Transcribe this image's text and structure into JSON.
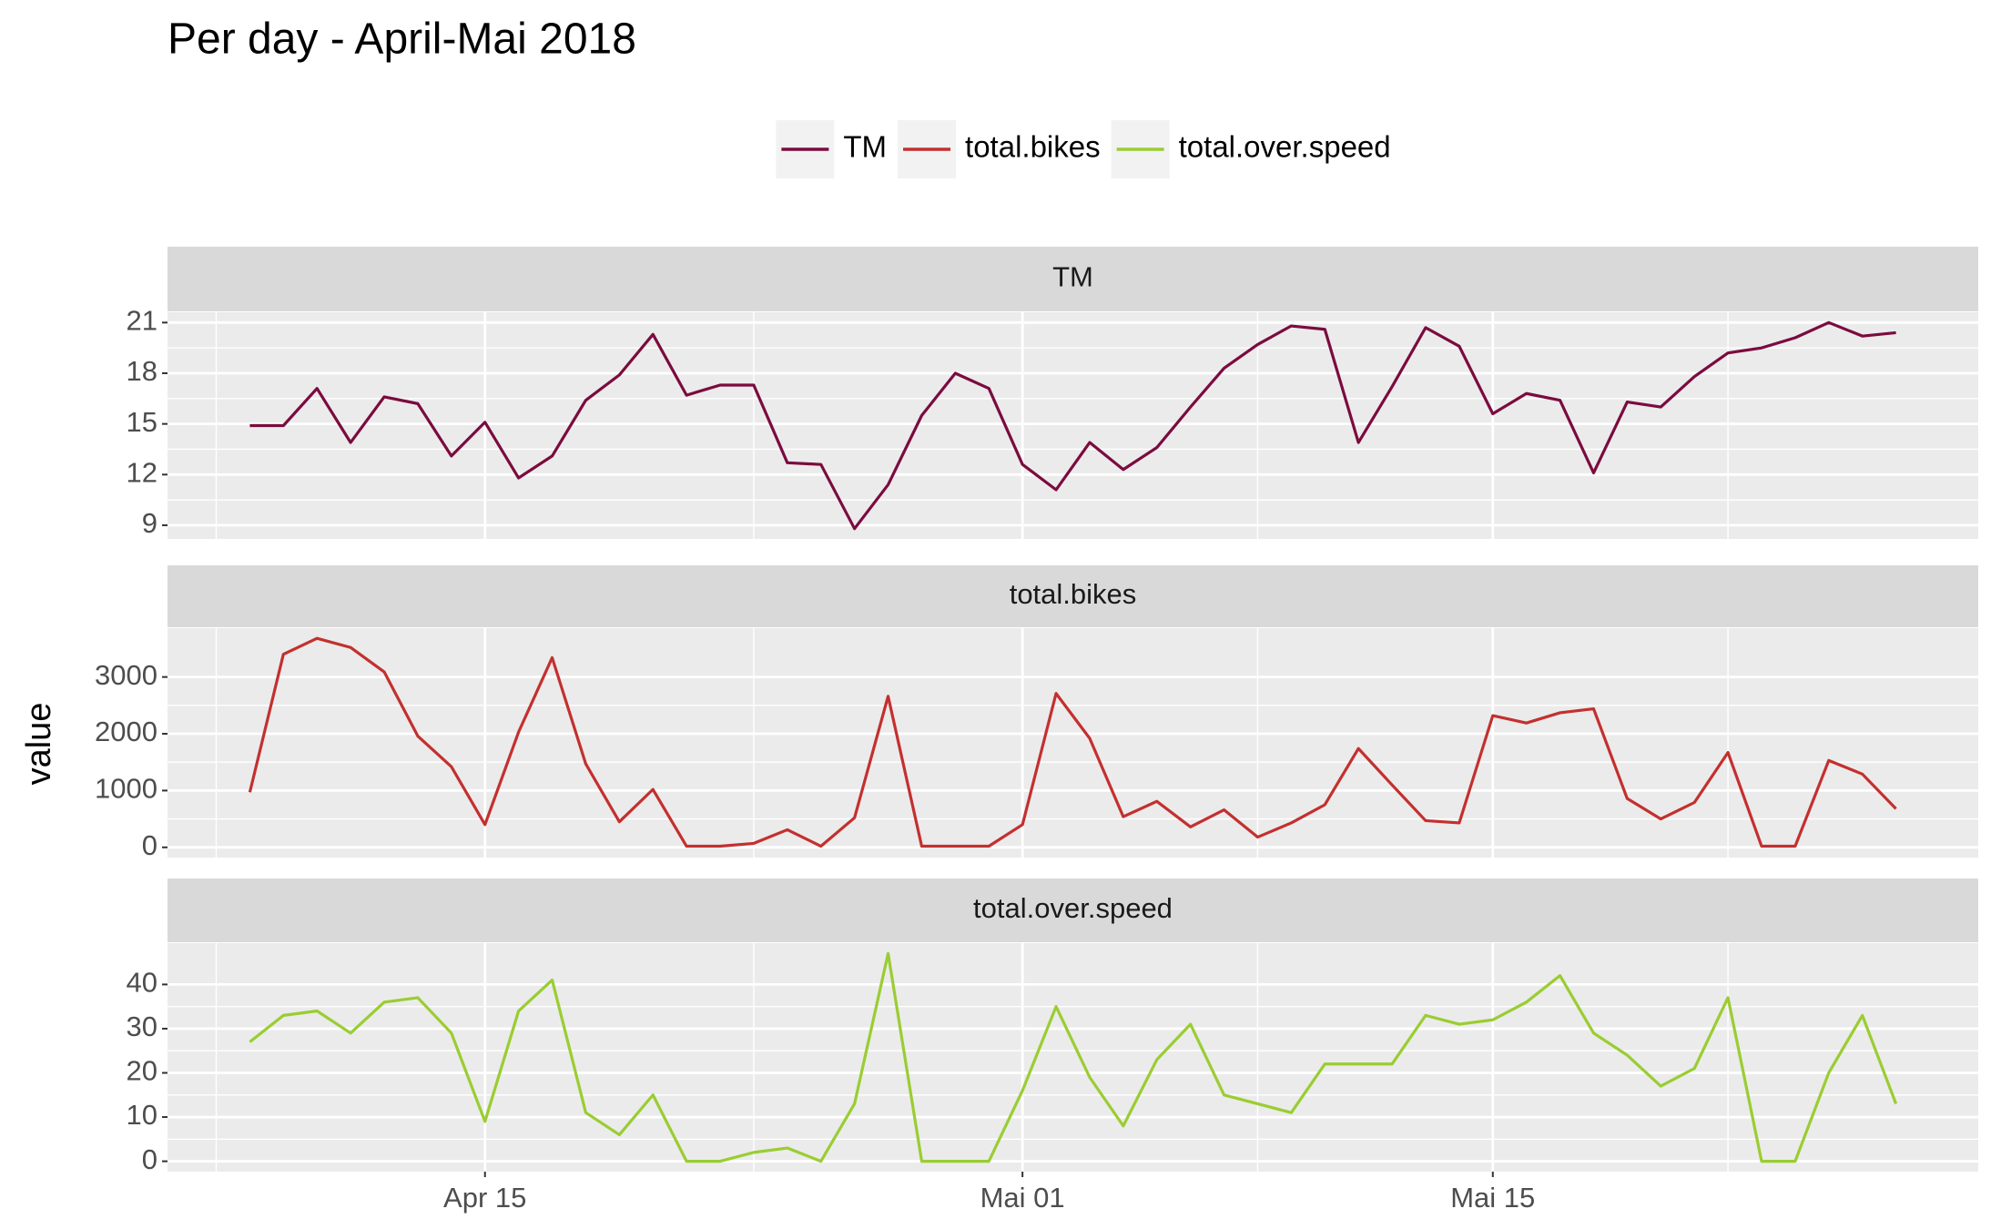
{
  "chart_data": {
    "type": "line",
    "title": "Per day - April-Mai 2018",
    "ylabel": "value",
    "legend": "top",
    "x": [
      "Apr 08",
      "Apr 09",
      "Apr 10",
      "Apr 11",
      "Apr 12",
      "Apr 13",
      "Apr 14",
      "Apr 15",
      "Apr 16",
      "Apr 17",
      "Apr 18",
      "Apr 19",
      "Apr 20",
      "Apr 21",
      "Apr 22",
      "Apr 23",
      "Apr 24",
      "Apr 25",
      "Apr 26",
      "Apr 27",
      "Apr 28",
      "Apr 29",
      "Apr 30",
      "Mai 01",
      "Mai 02",
      "Mai 03",
      "Mai 04",
      "Mai 05",
      "Mai 06",
      "Mai 07",
      "Mai 08",
      "Mai 09",
      "Mai 10",
      "Mai 11",
      "Mai 12",
      "Mai 13",
      "Mai 14",
      "Mai 15",
      "Mai 16",
      "Mai 17",
      "Mai 18",
      "Mai 19",
      "Mai 20",
      "Mai 21",
      "Mai 22",
      "Mai 23",
      "Mai 24",
      "Mai 25",
      "Mai 26",
      "Mai 27"
    ],
    "xticks": [
      "Apr 15",
      "Mai 01",
      "Mai 15"
    ],
    "series": [
      {
        "name": "TM",
        "color": "#7b0b3f",
        "ylim": [
          8.19,
          21.61
        ],
        "yticks": [
          9,
          12,
          15,
          18,
          21
        ],
        "values": [
          14.9,
          14.9,
          17.1,
          13.9,
          16.6,
          16.2,
          13.1,
          15.1,
          11.8,
          13.1,
          16.4,
          17.9,
          20.3,
          16.7,
          17.3,
          17.3,
          12.7,
          12.6,
          8.8,
          11.4,
          15.5,
          18.0,
          17.1,
          12.6,
          11.1,
          13.9,
          12.3,
          13.6,
          16.0,
          18.3,
          19.7,
          20.8,
          20.6,
          13.9,
          17.2,
          20.7,
          19.6,
          15.6,
          16.8,
          16.4,
          12.1,
          16.3,
          16.0,
          17.8,
          19.2,
          19.5,
          20.1,
          21.0,
          20.2,
          20.4
        ]
      },
      {
        "name": "total.bikes",
        "color": "#c3302f",
        "ylim": [
          -180,
          3860
        ],
        "yticks": [
          0,
          1000,
          2000,
          3000
        ],
        "values": [
          970,
          3400,
          3680,
          3520,
          3090,
          1960,
          1420,
          400,
          2030,
          3340,
          1470,
          450,
          1020,
          20,
          20,
          70,
          310,
          20,
          520,
          2660,
          20,
          20,
          20,
          400,
          2710,
          1920,
          540,
          810,
          360,
          660,
          180,
          430,
          750,
          1740,
          1100,
          470,
          430,
          2320,
          2190,
          2370,
          2440,
          860,
          500,
          790,
          1670,
          20,
          20,
          1530,
          1290,
          680
        ]
      },
      {
        "name": "total.over.speed",
        "color": "#9acd32",
        "ylim": [
          -2.35,
          49.35
        ],
        "yticks": [
          0,
          10,
          20,
          30,
          40
        ],
        "values": [
          27,
          33,
          34,
          29,
          36,
          37,
          29,
          9,
          34,
          41,
          11,
          6,
          15,
          0,
          0,
          2,
          3,
          0,
          13,
          47,
          0,
          0,
          0,
          16,
          35,
          19,
          8,
          23,
          31,
          15,
          13,
          11,
          22,
          22,
          22,
          33,
          31,
          32,
          36,
          42,
          29,
          24,
          17,
          21,
          37,
          0,
          0,
          20,
          33,
          13
        ]
      }
    ]
  }
}
